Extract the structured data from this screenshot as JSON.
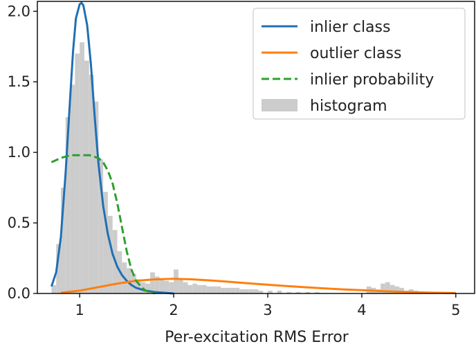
{
  "chart_data": {
    "type": "line",
    "title": "",
    "xlabel": "Per-excitation RMS Error",
    "ylabel": "",
    "xlim": [
      0.55,
      5.2
    ],
    "ylim": [
      0.0,
      2.07
    ],
    "xticks": [
      1,
      2,
      3,
      4,
      5
    ],
    "xtick_labels": [
      "1",
      "2",
      "3",
      "4",
      "5"
    ],
    "yticks": [
      0.0,
      0.5,
      1.0,
      1.5,
      2.0
    ],
    "ytick_labels": [
      "0.0",
      "0.5",
      "1.0",
      "1.5",
      "2.0"
    ],
    "grid": false,
    "legend_position": "top-right",
    "histogram": {
      "name": "histogram",
      "color": "#cccccc",
      "bin_width": 0.05,
      "bins": [
        {
          "x": 0.7,
          "y": 0.06
        },
        {
          "x": 0.75,
          "y": 0.35
        },
        {
          "x": 0.8,
          "y": 0.75
        },
        {
          "x": 0.85,
          "y": 1.25
        },
        {
          "x": 0.9,
          "y": 1.48
        },
        {
          "x": 0.95,
          "y": 1.7
        },
        {
          "x": 1.0,
          "y": 1.78
        },
        {
          "x": 1.05,
          "y": 1.65
        },
        {
          "x": 1.1,
          "y": 1.55
        },
        {
          "x": 1.15,
          "y": 1.36
        },
        {
          "x": 1.2,
          "y": 0.95
        },
        {
          "x": 1.25,
          "y": 0.72
        },
        {
          "x": 1.3,
          "y": 0.55
        },
        {
          "x": 1.35,
          "y": 0.45
        },
        {
          "x": 1.4,
          "y": 0.3
        },
        {
          "x": 1.45,
          "y": 0.22
        },
        {
          "x": 1.5,
          "y": 0.18
        },
        {
          "x": 1.55,
          "y": 0.14
        },
        {
          "x": 1.6,
          "y": 0.1
        },
        {
          "x": 1.65,
          "y": 0.08
        },
        {
          "x": 1.7,
          "y": 0.07
        },
        {
          "x": 1.75,
          "y": 0.15
        },
        {
          "x": 1.8,
          "y": 0.12
        },
        {
          "x": 1.85,
          "y": 0.1
        },
        {
          "x": 1.9,
          "y": 0.09
        },
        {
          "x": 1.95,
          "y": 0.08
        },
        {
          "x": 2.0,
          "y": 0.17
        },
        {
          "x": 2.05,
          "y": 0.1
        },
        {
          "x": 2.1,
          "y": 0.08
        },
        {
          "x": 2.15,
          "y": 0.06
        },
        {
          "x": 2.2,
          "y": 0.07
        },
        {
          "x": 2.25,
          "y": 0.06
        },
        {
          "x": 2.3,
          "y": 0.06
        },
        {
          "x": 2.35,
          "y": 0.05
        },
        {
          "x": 2.4,
          "y": 0.05
        },
        {
          "x": 2.45,
          "y": 0.05
        },
        {
          "x": 2.5,
          "y": 0.04
        },
        {
          "x": 2.55,
          "y": 0.04
        },
        {
          "x": 2.6,
          "y": 0.04
        },
        {
          "x": 2.65,
          "y": 0.04
        },
        {
          "x": 2.7,
          "y": 0.03
        },
        {
          "x": 2.75,
          "y": 0.03
        },
        {
          "x": 2.8,
          "y": 0.03
        },
        {
          "x": 2.85,
          "y": 0.03
        },
        {
          "x": 2.9,
          "y": 0.02
        },
        {
          "x": 3.0,
          "y": 0.02
        },
        {
          "x": 3.1,
          "y": 0.02
        },
        {
          "x": 3.2,
          "y": 0.01
        },
        {
          "x": 3.3,
          "y": 0.01
        },
        {
          "x": 3.4,
          "y": 0.01
        },
        {
          "x": 3.5,
          "y": 0.01
        },
        {
          "x": 4.05,
          "y": 0.05
        },
        {
          "x": 4.1,
          "y": 0.04
        },
        {
          "x": 4.15,
          "y": 0.03
        },
        {
          "x": 4.2,
          "y": 0.07
        },
        {
          "x": 4.25,
          "y": 0.08
        },
        {
          "x": 4.3,
          "y": 0.06
        },
        {
          "x": 4.35,
          "y": 0.05
        },
        {
          "x": 4.4,
          "y": 0.04
        },
        {
          "x": 4.45,
          "y": 0.02
        },
        {
          "x": 4.5,
          "y": 0.03
        },
        {
          "x": 4.55,
          "y": 0.02
        },
        {
          "x": 4.6,
          "y": 0.01
        }
      ]
    },
    "series": [
      {
        "name": "inlier class",
        "color": "#1f6fb4",
        "dash": "solid",
        "x": [
          0.7,
          0.75,
          0.8,
          0.85,
          0.9,
          0.93,
          0.96,
          1.0,
          1.02,
          1.04,
          1.08,
          1.12,
          1.16,
          1.2,
          1.25,
          1.3,
          1.35,
          1.4,
          1.45,
          1.5,
          1.55,
          1.6,
          1.7,
          1.8,
          1.9,
          2.0
        ],
        "y": [
          0.05,
          0.15,
          0.4,
          0.85,
          1.4,
          1.72,
          1.95,
          2.05,
          2.06,
          2.04,
          1.9,
          1.62,
          1.25,
          0.92,
          0.62,
          0.42,
          0.28,
          0.19,
          0.13,
          0.09,
          0.06,
          0.04,
          0.02,
          0.01,
          0.005,
          0.0
        ]
      },
      {
        "name": "outlier class",
        "color": "#ff7f0e",
        "dash": "solid",
        "x": [
          0.8,
          1.0,
          1.2,
          1.4,
          1.6,
          1.8,
          2.0,
          2.2,
          2.4,
          2.6,
          2.8,
          3.0,
          3.2,
          3.4,
          3.6,
          3.8,
          4.0,
          4.2,
          4.4,
          4.6,
          4.8,
          5.0
        ],
        "y": [
          0.005,
          0.02,
          0.045,
          0.07,
          0.09,
          0.1,
          0.104,
          0.1,
          0.092,
          0.082,
          0.072,
          0.062,
          0.053,
          0.044,
          0.036,
          0.029,
          0.023,
          0.017,
          0.012,
          0.008,
          0.005,
          0.003
        ]
      },
      {
        "name": "inlier probability",
        "color": "#2ca02c",
        "dash": "dashed",
        "x": [
          0.7,
          0.8,
          0.9,
          1.0,
          1.1,
          1.2,
          1.25,
          1.3,
          1.35,
          1.4,
          1.45,
          1.5,
          1.55,
          1.6,
          1.65,
          1.7,
          1.75,
          1.8
        ],
        "y": [
          0.93,
          0.96,
          0.98,
          0.98,
          0.98,
          0.96,
          0.93,
          0.87,
          0.78,
          0.64,
          0.47,
          0.3,
          0.17,
          0.09,
          0.05,
          0.02,
          0.01,
          0.0
        ]
      }
    ]
  }
}
